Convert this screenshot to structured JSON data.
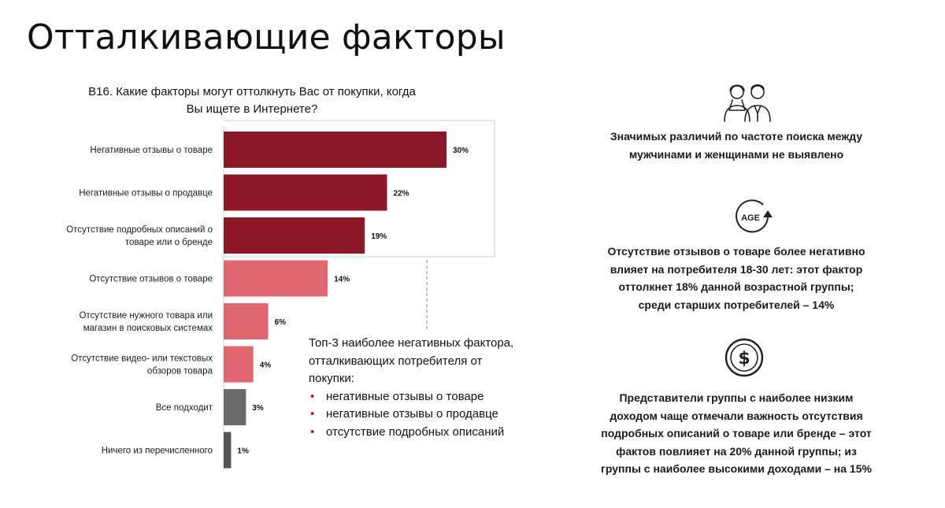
{
  "page": {
    "title": "Отталкивающие факторы"
  },
  "chart_data": {
    "type": "bar",
    "orientation": "horizontal",
    "title": "В16. Какие факторы могут оттолкнуть Вас от покупки, когда Вы ищете в Интернете?",
    "title_lines": [
      "В16. Какие факторы могут оттолкнуть Вас от покупки, когда",
      "Вы ищете в Интернете?"
    ],
    "xlabel": "",
    "ylabel": "",
    "xlim": [
      0,
      30
    ],
    "grid": false,
    "categories": [
      [
        "Негативные отзывы о товаре"
      ],
      [
        "Негативные отзывы о продавце"
      ],
      [
        "Отсутствие подробных описаний о",
        "товаре или о бренде"
      ],
      [
        "Отсутствие отзывов о товаре"
      ],
      [
        "Отсутствие нужного товара или",
        "магазин в поисковых системах"
      ],
      [
        "Отсутствие видео- или текстовых",
        "обзоров товара"
      ],
      [
        "Все подходит"
      ],
      [
        "Ничего из перечисленного"
      ]
    ],
    "values": [
      30,
      22,
      19,
      14,
      6,
      4,
      3,
      1
    ],
    "value_labels": [
      "30%",
      "22%",
      "19%",
      "14%",
      "6%",
      "4%",
      "3%",
      "1%"
    ],
    "colors": [
      "#8d1628",
      "#8d1628",
      "#8d1628",
      "#e06671",
      "#e06671",
      "#e06671",
      "#6a6a6a",
      "#555555"
    ]
  },
  "top3": {
    "title_lines": [
      "Топ-3 наиболее негативных фактора,",
      "отталкивающих потребителя от",
      "покупки:"
    ],
    "items": [
      "негативные отзывы о товаре",
      "негативные отзывы о продавце",
      "отсутствие подробных описаний"
    ],
    "bullet_color": "#c4132d"
  },
  "insights": [
    {
      "icon": "people-icon",
      "lines": [
        "Значимых различий по частоте поиска между",
        "мужчинами и женщинами не выявлено"
      ]
    },
    {
      "icon": "age-icon",
      "icon_text": "AGE",
      "lines": [
        "Отсутствие отзывов о товаре более негативно",
        "влияет на потребителя 18-30 лет: этот фактор",
        "оттолкнет 18% данной возрастной группы;",
        "среди старших потребителей – 14%"
      ]
    },
    {
      "icon": "dollar-coin-icon",
      "lines": [
        "Представители группы с наиболее низким",
        "доходом чаще отмечали важность отсутствия",
        "подробных описаний о товаре или бренде – этот",
        "фактов повлияет на 20% данной группы; из",
        "группы с наиболее высокими доходами – на 15%"
      ]
    }
  ]
}
